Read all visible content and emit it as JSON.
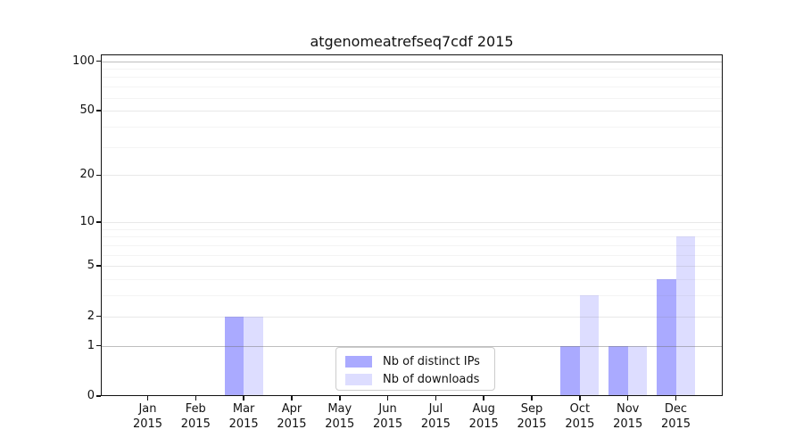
{
  "title": "atgenomeatrefseq7cdf 2015",
  "legend": {
    "items": [
      {
        "label": "Nb of distinct IPs",
        "color": "#aaaaff"
      },
      {
        "label": "Nb of downloads",
        "color": "#ddddff"
      }
    ]
  },
  "chart_data": {
    "type": "bar",
    "title": "atgenomeatrefseq7cdf 2015",
    "xlabel": "",
    "ylabel": "",
    "year": "2015",
    "categories": [
      "Jan",
      "Feb",
      "Mar",
      "Apr",
      "May",
      "Jun",
      "Jul",
      "Aug",
      "Sep",
      "Oct",
      "Nov",
      "Dec"
    ],
    "series": [
      {
        "name": "Nb of distinct IPs",
        "color": "#aaaaff",
        "values": [
          0,
          0,
          2,
          0,
          0,
          0,
          0,
          0,
          0,
          1,
          1,
          4
        ]
      },
      {
        "name": "Nb of downloads",
        "color": "#ddddff",
        "values": [
          0,
          0,
          2,
          0,
          0,
          0,
          0,
          0,
          0,
          3,
          1,
          8
        ]
      }
    ],
    "y_scale": "log1p",
    "ylim": [
      0,
      100
    ],
    "y_ticks": [
      0,
      1,
      2,
      5,
      10,
      20,
      50,
      100
    ],
    "y_strong_gridlines": [
      1,
      100
    ],
    "y_major_gridlines": [
      2,
      5,
      10,
      20,
      50
    ],
    "y_minor_gridlines": [
      3,
      4,
      6,
      7,
      8,
      9,
      30,
      40,
      60,
      70,
      80,
      90
    ],
    "grid": true,
    "legend_position": "lower center"
  }
}
